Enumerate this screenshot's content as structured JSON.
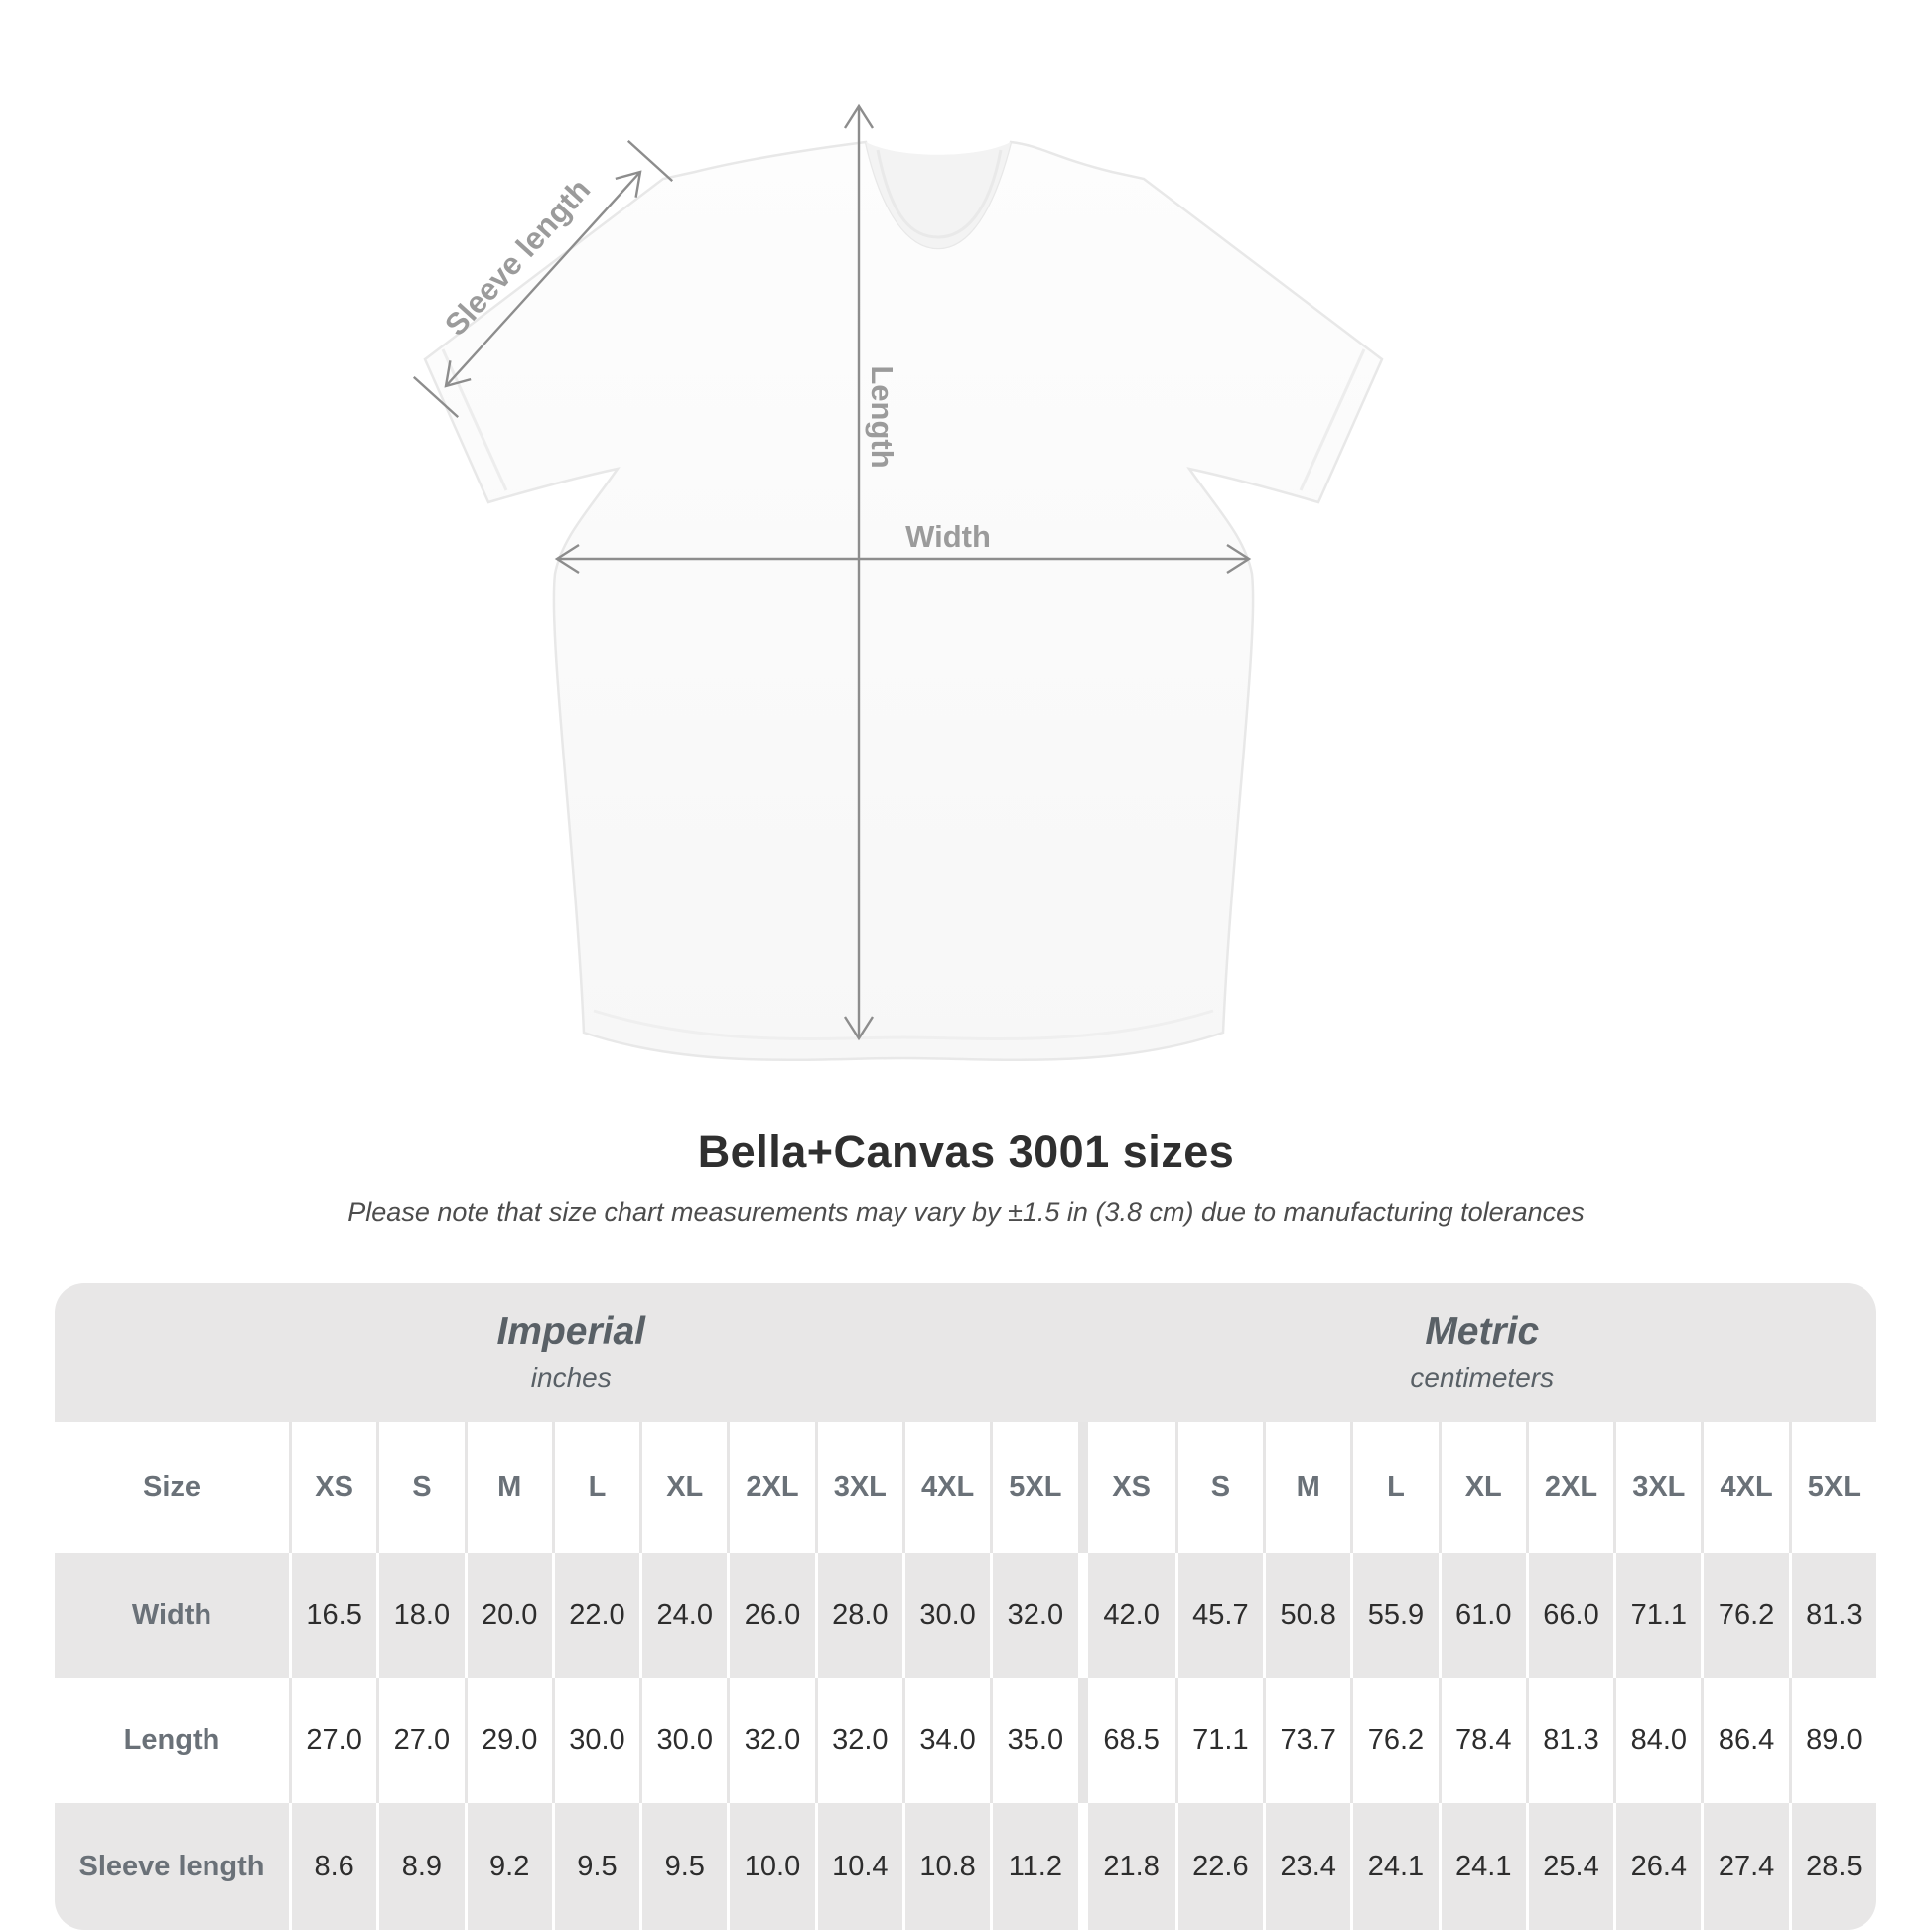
{
  "diagram": {
    "sleeve_length_label": "Sleeve length",
    "length_label": "Length",
    "width_label": "Width"
  },
  "header": {
    "title": "Bella+Canvas 3001 sizes",
    "subtitle": "Please note that size chart measurements may vary by ±1.5 in (3.8 cm) due to manufacturing tolerances"
  },
  "size_table": {
    "groups": [
      {
        "name": "Imperial",
        "unit": "inches"
      },
      {
        "name": "Metric",
        "unit": "centimeters"
      }
    ],
    "size_column_header": "Size",
    "sizes": [
      "XS",
      "S",
      "M",
      "L",
      "XL",
      "2XL",
      "3XL",
      "4XL",
      "5XL"
    ],
    "rows": [
      {
        "label": "Width",
        "imperial": [
          "16.5",
          "18.0",
          "20.0",
          "22.0",
          "24.0",
          "26.0",
          "28.0",
          "30.0",
          "32.0"
        ],
        "metric": [
          "42.0",
          "45.7",
          "50.8",
          "55.9",
          "61.0",
          "66.0",
          "71.1",
          "76.2",
          "81.3"
        ]
      },
      {
        "label": "Length",
        "imperial": [
          "27.0",
          "27.0",
          "29.0",
          "30.0",
          "30.0",
          "32.0",
          "32.0",
          "34.0",
          "35.0"
        ],
        "metric": [
          "68.5",
          "71.1",
          "73.7",
          "76.2",
          "78.4",
          "81.3",
          "84.0",
          "86.4",
          "89.0"
        ]
      },
      {
        "label": "Sleeve length",
        "imperial": [
          "8.6",
          "8.9",
          "9.2",
          "9.5",
          "9.5",
          "10.0",
          "10.4",
          "10.8",
          "11.2"
        ],
        "metric": [
          "21.8",
          "22.6",
          "23.4",
          "24.1",
          "24.1",
          "25.4",
          "26.4",
          "27.4",
          "28.5"
        ]
      }
    ]
  },
  "chart_data": {
    "type": "table",
    "title": "Bella+Canvas 3001 sizes",
    "column_groups": [
      "Imperial (inches)",
      "Metric (centimeters)"
    ],
    "columns": [
      "Size",
      "XS",
      "S",
      "M",
      "L",
      "XL",
      "2XL",
      "3XL",
      "4XL",
      "5XL",
      "XS",
      "S",
      "M",
      "L",
      "XL",
      "2XL",
      "3XL",
      "4XL",
      "5XL"
    ],
    "rows": [
      [
        "Width",
        16.5,
        18.0,
        20.0,
        22.0,
        24.0,
        26.0,
        28.0,
        30.0,
        32.0,
        42.0,
        45.7,
        50.8,
        55.9,
        61.0,
        66.0,
        71.1,
        76.2,
        81.3
      ],
      [
        "Length",
        27.0,
        27.0,
        29.0,
        30.0,
        30.0,
        32.0,
        32.0,
        34.0,
        35.0,
        68.5,
        71.1,
        73.7,
        76.2,
        78.4,
        81.3,
        84.0,
        86.4,
        89.0
      ],
      [
        "Sleeve length",
        8.6,
        8.9,
        9.2,
        9.5,
        9.5,
        10.0,
        10.4,
        10.8,
        11.2,
        21.8,
        22.6,
        23.4,
        24.1,
        24.1,
        25.4,
        26.4,
        27.4,
        28.5
      ]
    ]
  },
  "colors": {
    "stripe_gray": "#e8e7e7",
    "separator": "#e6e5e5",
    "label_text": "#6a7178",
    "value_text": "#2d2d2d",
    "group_text": "#596066",
    "annotation_text": "#9b9b9b",
    "arrow": "#8d8d8d"
  }
}
